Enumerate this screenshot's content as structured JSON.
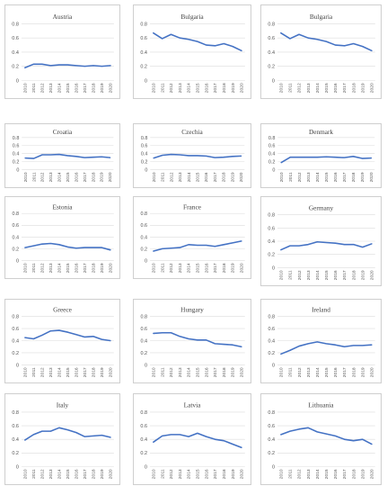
{
  "chart_data": [
    {
      "type": "line",
      "title": "Austria",
      "ylim": [
        0,
        0.8
      ],
      "yticks": [
        "0",
        "0.2",
        "0.4",
        "0.6",
        "0.8"
      ],
      "categories": [
        "2010",
        "2011",
        "2012",
        "2013",
        "2014",
        "2015",
        "2016",
        "2017",
        "2018",
        "2019",
        "2020"
      ],
      "values": [
        0.18,
        0.23,
        0.23,
        0.21,
        0.22,
        0.22,
        0.21,
        0.2,
        0.21,
        0.2,
        0.21
      ],
      "grid": true
    },
    {
      "type": "line",
      "title": "Bulgaria",
      "ylim": [
        0,
        0.8
      ],
      "yticks": [
        "0",
        "0.2",
        "0.4",
        "0.6",
        "0.8"
      ],
      "categories": [
        "2010",
        "2011",
        "2012",
        "2013",
        "2014",
        "2015",
        "2016",
        "2017",
        "2018",
        "2019",
        "2020"
      ],
      "values": [
        0.67,
        0.59,
        0.65,
        0.6,
        0.58,
        0.55,
        0.5,
        0.49,
        0.52,
        0.48,
        0.42
      ],
      "grid": true
    },
    {
      "type": "line",
      "title": "Bulgaria",
      "ylim": [
        0,
        0.8
      ],
      "yticks": [
        "0",
        "0.2",
        "0.4",
        "0.6",
        "0.8"
      ],
      "categories": [
        "2010",
        "2011",
        "2012",
        "2013",
        "2014",
        "2015",
        "2016",
        "2017",
        "2018",
        "2019",
        "2020"
      ],
      "values": [
        0.67,
        0.59,
        0.65,
        0.6,
        0.58,
        0.55,
        0.5,
        0.49,
        0.52,
        0.48,
        0.42
      ],
      "grid": true
    },
    {
      "type": "line",
      "title": "Croatia",
      "ylim": [
        0,
        0.8
      ],
      "yticks": [
        "0",
        "0.2",
        "0.4",
        "0.6",
        "0.8"
      ],
      "categories": [
        "2010",
        "2011",
        "2012",
        "2013",
        "2014",
        "2015",
        "2016",
        "2017",
        "2018",
        "2019",
        "2020"
      ],
      "values": [
        0.29,
        0.28,
        0.37,
        0.37,
        0.38,
        0.35,
        0.33,
        0.3,
        0.31,
        0.32,
        0.3
      ],
      "grid": true
    },
    {
      "type": "line",
      "title": "Czechia",
      "ylim": [
        0,
        0.8
      ],
      "yticks": [
        "0",
        "0.2",
        "0.4",
        "0.6",
        "0.8"
      ],
      "categories": [
        "2010",
        "2011",
        "2012",
        "2013",
        "2014",
        "2015",
        "2016",
        "2017",
        "2018",
        "2019",
        "2020"
      ],
      "values": [
        0.29,
        0.36,
        0.38,
        0.37,
        0.35,
        0.35,
        0.34,
        0.3,
        0.31,
        0.33,
        0.34
      ],
      "grid": true
    },
    {
      "type": "line",
      "title": "Denmark",
      "ylim": [
        0,
        0.8
      ],
      "yticks": [
        "0",
        "0.2",
        "0.4",
        "0.6",
        "0.8"
      ],
      "categories": [
        "2010",
        "2011",
        "2012",
        "2013",
        "2014",
        "2015",
        "2016",
        "2017",
        "2018",
        "2019",
        "2020"
      ],
      "values": [
        0.18,
        0.31,
        0.31,
        0.31,
        0.31,
        0.32,
        0.31,
        0.3,
        0.33,
        0.28,
        0.29
      ],
      "grid": true
    },
    {
      "type": "line",
      "title": "Estonia",
      "ylim": [
        0,
        0.8
      ],
      "yticks": [
        "0",
        "0.2",
        "0.4",
        "0.6",
        "0.8"
      ],
      "categories": [
        "2010",
        "2011",
        "2012",
        "2013",
        "2014",
        "2015",
        "2016",
        "2017",
        "2018",
        "2019",
        "2020"
      ],
      "values": [
        0.22,
        0.25,
        0.28,
        0.29,
        0.27,
        0.23,
        0.21,
        0.22,
        0.22,
        0.22,
        0.18
      ],
      "grid": true
    },
    {
      "type": "line",
      "title": "France",
      "ylim": [
        0,
        0.8
      ],
      "yticks": [
        "0",
        "0.2",
        "0.4",
        "0.6",
        "0.8"
      ],
      "categories": [
        "2010",
        "2011",
        "2012",
        "2013",
        "2014",
        "2015",
        "2016",
        "2017",
        "2018",
        "2019",
        "2020"
      ],
      "values": [
        0.16,
        0.2,
        0.21,
        0.22,
        0.27,
        0.26,
        0.26,
        0.24,
        0.27,
        0.3,
        0.33
      ],
      "grid": true
    },
    {
      "type": "line",
      "title": "Germany",
      "ylim": [
        0,
        0.8
      ],
      "yticks": [
        "0",
        "0.2",
        "0.4",
        "0.6",
        "0.8"
      ],
      "categories": [
        "2010",
        "2011",
        "2012",
        "2013",
        "2014",
        "2015",
        "2016",
        "2017",
        "2018",
        "2019",
        "2020"
      ],
      "values": [
        0.27,
        0.33,
        0.33,
        0.35,
        0.39,
        0.38,
        0.37,
        0.35,
        0.35,
        0.31,
        0.36
      ],
      "grid": true
    },
    {
      "type": "line",
      "title": "Greece",
      "ylim": [
        0,
        0.8
      ],
      "yticks": [
        "0",
        "0.2",
        "0.4",
        "0.6",
        "0.8"
      ],
      "categories": [
        "2010",
        "2011",
        "2012",
        "2013",
        "2014",
        "2015",
        "2016",
        "2017",
        "2018",
        "2019",
        "2020"
      ],
      "values": [
        0.45,
        0.43,
        0.49,
        0.56,
        0.57,
        0.54,
        0.5,
        0.46,
        0.47,
        0.42,
        0.4
      ],
      "grid": true
    },
    {
      "type": "line",
      "title": "Hungary",
      "ylim": [
        0,
        0.8
      ],
      "yticks": [
        "0",
        "0.2",
        "0.4",
        "0.6",
        "0.8"
      ],
      "categories": [
        "2010",
        "2011",
        "2012",
        "2013",
        "2014",
        "2015",
        "2016",
        "2017",
        "2018",
        "2019",
        "2020"
      ],
      "values": [
        0.52,
        0.53,
        0.53,
        0.47,
        0.43,
        0.41,
        0.41,
        0.35,
        0.34,
        0.33,
        0.3
      ],
      "grid": true
    },
    {
      "type": "line",
      "title": "Ireland",
      "ylim": [
        0,
        0.8
      ],
      "yticks": [
        "0",
        "0.2",
        "0.4",
        "0.6",
        "0.8"
      ],
      "categories": [
        "2010",
        "2011",
        "2012",
        "2013",
        "2014",
        "2015",
        "2016",
        "2017",
        "2018",
        "2019",
        "2020"
      ],
      "values": [
        0.18,
        0.24,
        0.31,
        0.35,
        0.38,
        0.35,
        0.33,
        0.3,
        0.32,
        0.32,
        0.33
      ],
      "grid": true
    },
    {
      "type": "line",
      "title": "Italy",
      "ylim": [
        0,
        0.8
      ],
      "yticks": [
        "0",
        "0.2",
        "0.4",
        "0.6",
        "0.8"
      ],
      "categories": [
        "2010",
        "2011",
        "2012",
        "2013",
        "2014",
        "2015",
        "2016",
        "2017",
        "2018",
        "2019",
        "2020"
      ],
      "values": [
        0.39,
        0.47,
        0.52,
        0.52,
        0.57,
        0.54,
        0.5,
        0.44,
        0.45,
        0.46,
        0.43
      ],
      "grid": true
    },
    {
      "type": "line",
      "title": "Latvia",
      "ylim": [
        0,
        0.8
      ],
      "yticks": [
        "0",
        "0.2",
        "0.4",
        "0.6",
        "0.8"
      ],
      "categories": [
        "2010",
        "2011",
        "2012",
        "2013",
        "2014",
        "2015",
        "2016",
        "2017",
        "2018",
        "2019",
        "2020"
      ],
      "values": [
        0.36,
        0.45,
        0.47,
        0.47,
        0.44,
        0.49,
        0.44,
        0.4,
        0.38,
        0.33,
        0.28
      ],
      "grid": true
    },
    {
      "type": "line",
      "title": "Lithuania",
      "ylim": [
        0,
        0.8
      ],
      "yticks": [
        "0",
        "0.2",
        "0.4",
        "0.6",
        "0.8"
      ],
      "categories": [
        "2010",
        "2011",
        "2012",
        "2013",
        "2014",
        "2015",
        "2016",
        "2017",
        "2018",
        "2019",
        "2020"
      ],
      "values": [
        0.47,
        0.52,
        0.55,
        0.57,
        0.51,
        0.48,
        0.45,
        0.4,
        0.38,
        0.4,
        0.33
      ],
      "grid": true
    }
  ],
  "colors": {
    "line": "#4472c4",
    "grid": "#dcdcdc",
    "border": "#cfcfcf"
  }
}
